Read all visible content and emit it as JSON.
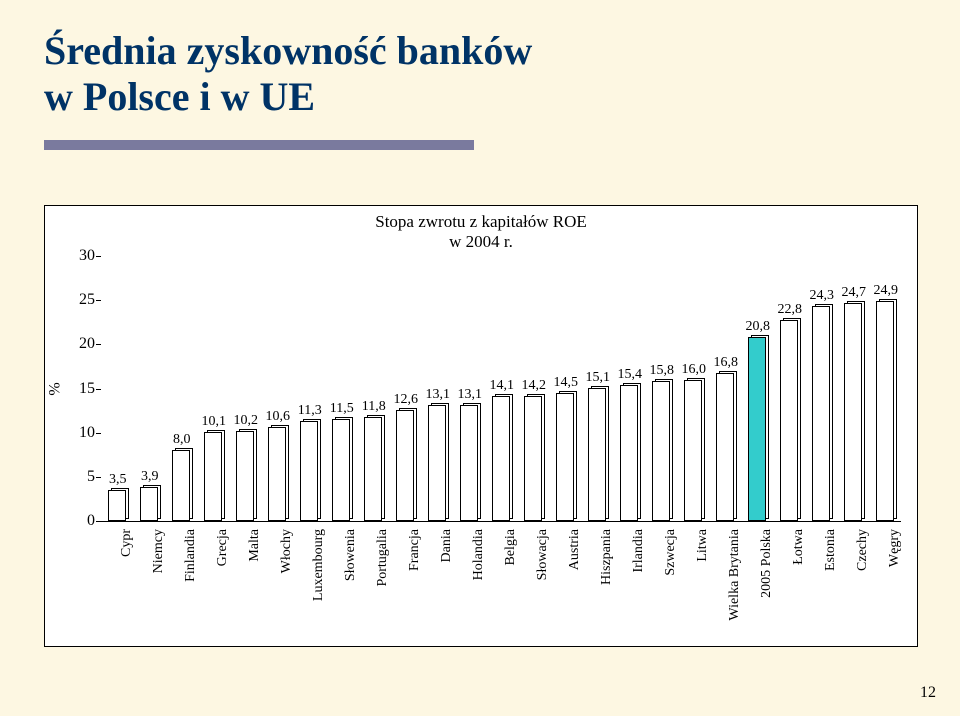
{
  "title_line1": "Średnia zyskowność banków",
  "title_line2": "w Polsce i w UE",
  "page_number": "12",
  "slide_bg": "#fdf7e2",
  "underline_color": "#7a7a9e",
  "title_color": "#003366",
  "title_fontsize": 40,
  "chart": {
    "type": "bar",
    "title": "Stopa zwrotu z kapitałów ROE\nw 2004 r.",
    "title_fontsize": 17,
    "y_axis_title": "%",
    "y_axis_fontsize": 16,
    "y_ticks": [
      0,
      5,
      10,
      15,
      20,
      25,
      30
    ],
    "y_tick_fontsize": 16,
    "ylim": [
      0,
      30
    ],
    "label_fontsize": 14,
    "value_fontsize": 14,
    "categories": [
      "Cypr",
      "Niemcy",
      "Finlandia",
      "Grecja",
      "Malta",
      "Włochy",
      "Luxembourg",
      "Słowenia",
      "Portugalia",
      "Francja",
      "Dania",
      "Holandia",
      "Belgia",
      "Słowacja",
      "Austria",
      "Hiszpania",
      "Irlandia",
      "Szwecja",
      "Litwa",
      "Wielka Brytania",
      "2005 Polska",
      "Łotwa",
      "Estonia",
      "Czechy",
      "Węgry"
    ],
    "values": [
      3.5,
      3.9,
      8.0,
      10.1,
      10.2,
      10.6,
      11.3,
      11.5,
      11.8,
      12.6,
      13.1,
      13.1,
      14.1,
      14.2,
      14.5,
      15.1,
      15.4,
      15.8,
      16.0,
      16.8,
      20.8,
      22.8,
      24.3,
      24.7,
      24.9
    ],
    "value_labels": [
      "3,5",
      "3,9",
      "8,0",
      "10,1",
      "10,2",
      "10,6",
      "11,3",
      "11,5",
      "11,8",
      "12,6",
      "13,1",
      "13,1",
      "14,1",
      "14,2",
      "14,5",
      "15,1",
      "15,4",
      "15,8",
      "16,0",
      "16,8",
      "20,8",
      "22,8",
      "24,3",
      "24,7",
      "24,9"
    ],
    "bar_color": "#ffffff",
    "highlight_index": 20,
    "highlight_color": "#33cccc",
    "shadow_color": "#ffffff",
    "border_color": "#000000",
    "plot_bg": "#ffffff",
    "chart_border": "#000000"
  }
}
